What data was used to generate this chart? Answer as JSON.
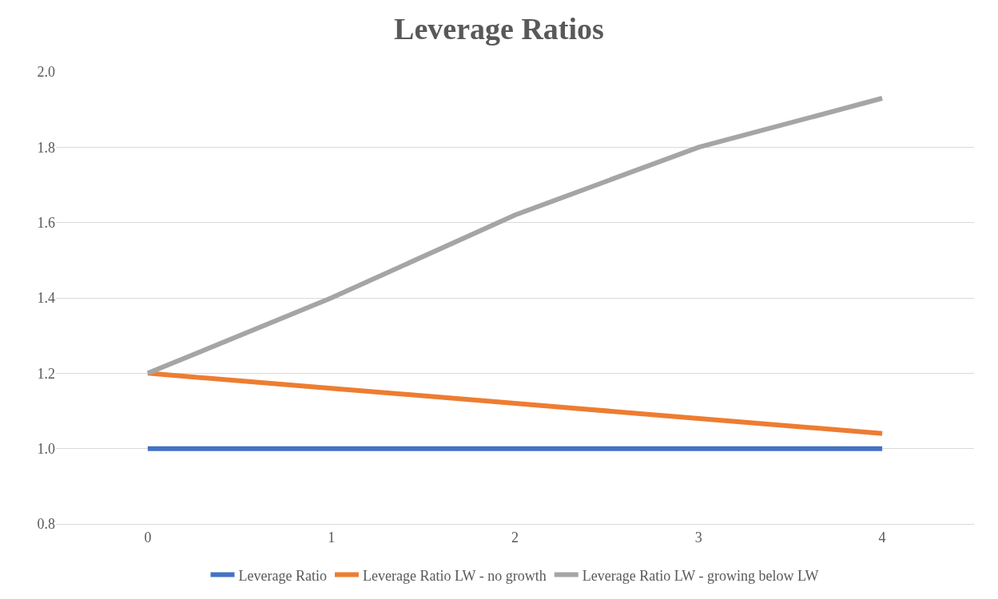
{
  "chart_data": {
    "type": "line",
    "title": "Leverage Ratios",
    "categories": [
      "0",
      "1",
      "2",
      "3",
      "4"
    ],
    "series": [
      {
        "name": "Leverage Ratio",
        "color": "#4472c4",
        "values": [
          1.0,
          1.0,
          1.0,
          1.0,
          1.0
        ]
      },
      {
        "name": "Leverage Ratio LW - no growth",
        "color": "#ed7d31",
        "values": [
          1.2,
          1.16,
          1.12,
          1.08,
          1.04
        ]
      },
      {
        "name": "Leverage Ratio LW - growing below LW",
        "color": "#a5a5a5",
        "values": [
          1.2,
          1.4,
          1.62,
          1.8,
          1.93
        ]
      }
    ],
    "ylim": [
      0.8,
      2.0
    ],
    "yticks": [
      {
        "value": 0.8,
        "label": "0.8"
      },
      {
        "value": 1.0,
        "label": "1.0"
      },
      {
        "value": 1.2,
        "label": "1.2"
      },
      {
        "value": 1.4,
        "label": "1.4"
      },
      {
        "value": 1.6,
        "label": "1.6"
      },
      {
        "value": 1.8,
        "label": "1.8"
      },
      {
        "value": 2.0,
        "label": "2.0"
      }
    ],
    "grid": "y",
    "legend": "bottom",
    "marker": "none",
    "line_style": "solid"
  }
}
